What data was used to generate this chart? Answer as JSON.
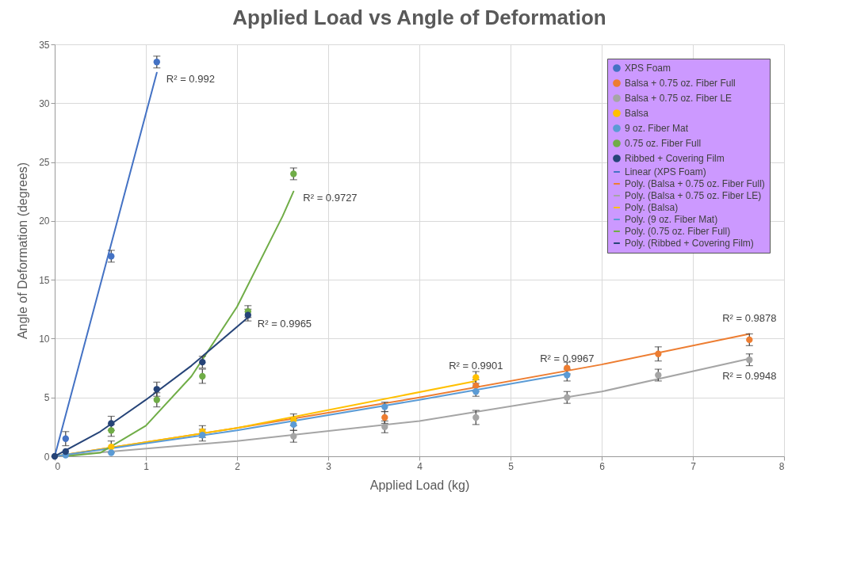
{
  "chart_data": {
    "type": "scatter",
    "title": "Applied Load vs Angle of Deformation",
    "xlabel": "Applied Load (kg)",
    "ylabel": "Angle of Deformation (degrees)",
    "xlim": [
      0,
      8
    ],
    "xticks": [
      0,
      1,
      2,
      3,
      4,
      5,
      6,
      7,
      8
    ],
    "ylim": [
      0,
      35
    ],
    "yticks": [
      0,
      5,
      10,
      15,
      20,
      25,
      30,
      35
    ],
    "grid": true,
    "legend": "top right",
    "marker": "circle",
    "series": [
      {
        "name": "XPS Foam",
        "color": "#4472c4",
        "x": [
          0.12,
          0.62,
          1.12
        ],
        "values": [
          1.5,
          17.0,
          33.5
        ],
        "errors": [
          0.6,
          0.5,
          0.5
        ]
      },
      {
        "name": "Balsa + 0.75 oz. Fiber Full",
        "color": "#ed7d31",
        "x": [
          3.62,
          4.62,
          5.62,
          6.62,
          7.62
        ],
        "values": [
          3.3,
          6.0,
          7.5,
          8.7,
          9.9
        ],
        "errors": [
          0.5,
          0.5,
          0.5,
          0.6,
          0.5
        ]
      },
      {
        "name": "Balsa + 0.75 oz. Fiber LE",
        "color": "#a5a5a5",
        "x": [
          2.62,
          3.62,
          4.62,
          5.62,
          6.62,
          7.62
        ],
        "values": [
          1.7,
          2.5,
          3.3,
          5.0,
          6.9,
          8.2
        ],
        "errors": [
          0.5,
          0.5,
          0.6,
          0.5,
          0.5,
          0.5
        ]
      },
      {
        "name": "Balsa",
        "color": "#ffc000",
        "x": [
          0.62,
          1.62,
          2.62,
          4.62
        ],
        "values": [
          0.8,
          2.1,
          3.1,
          6.7
        ],
        "errors": [
          0.5,
          0.5,
          0.5,
          0.5
        ]
      },
      {
        "name": "9 oz. Fiber Mat",
        "color": "#5b9bd5",
        "x": [
          0.12,
          0.62,
          1.62,
          2.62,
          3.62,
          4.62,
          5.62
        ],
        "values": [
          0.1,
          0.3,
          1.8,
          2.7,
          4.2,
          5.5,
          6.9
        ],
        "errors": [
          null,
          null,
          0.5,
          0.5,
          0.4,
          0.4,
          0.5
        ]
      },
      {
        "name": "0.75 oz. Fiber Full",
        "color": "#70ad47",
        "x": [
          0.62,
          1.12,
          1.62,
          2.12,
          2.62
        ],
        "values": [
          2.2,
          4.8,
          6.8,
          12.3,
          24.0
        ],
        "errors": [
          0.5,
          0.6,
          0.6,
          0.5,
          0.5
        ]
      },
      {
        "name": "Ribbed + Covering Film",
        "color": "#264478",
        "x": [
          0,
          0.12,
          0.62,
          1.12,
          1.62,
          2.12
        ],
        "values": [
          0,
          0.4,
          2.8,
          5.7,
          8.0,
          12.0
        ],
        "errors": [
          null,
          null,
          0.6,
          0.6,
          0.5,
          0.5
        ]
      },
      {
        "name": "Linear (XPS Foam)",
        "type": "line",
        "marker": "none",
        "color": "#4472c4",
        "x": [
          0,
          1.12
        ],
        "values": [
          0,
          32.6
        ]
      },
      {
        "name": "Poly. (Balsa + 0.75 oz. Fiber Full)",
        "type": "line",
        "marker": "none",
        "color": "#ed7d31",
        "x": [
          0,
          2,
          4,
          6,
          7.62
        ],
        "values": [
          0,
          2.4,
          5.0,
          7.8,
          10.4
        ]
      },
      {
        "name": "Poly. (Balsa + 0.75 oz. Fiber LE)",
        "type": "line",
        "marker": "none",
        "color": "#a5a5a5",
        "x": [
          0,
          2,
          4,
          6,
          7.62
        ],
        "values": [
          0,
          1.3,
          3.0,
          5.5,
          8.3
        ]
      },
      {
        "name": "Poly. (Balsa)",
        "type": "line",
        "marker": "none",
        "color": "#ffc000",
        "x": [
          0,
          2,
          4.62
        ],
        "values": [
          0,
          2.4,
          6.4
        ]
      },
      {
        "name": "Poly. (9 oz. Fiber Mat)",
        "type": "line",
        "marker": "none",
        "color": "#5b9bd5",
        "x": [
          0,
          2,
          4,
          5.62
        ],
        "values": [
          0,
          2.2,
          4.8,
          7.0
        ]
      },
      {
        "name": "Poly. (0.75 oz. Fiber Full)",
        "type": "line",
        "marker": "none",
        "color": "#70ad47",
        "x": [
          0.12,
          0.5,
          1,
          1.5,
          2,
          2.5,
          2.62
        ],
        "values": [
          0,
          0.3,
          2.6,
          6.8,
          12.7,
          20.4,
          22.5
        ]
      },
      {
        "name": "Poly. (Ribbed + Covering Film)",
        "type": "line",
        "marker": "none",
        "color": "#264478",
        "x": [
          0,
          0.5,
          1,
          1.5,
          2.12
        ],
        "values": [
          0,
          2.1,
          4.8,
          7.7,
          11.8
        ]
      }
    ],
    "annotations": [
      {
        "text": "R² = 0.992",
        "x": 1.12,
        "y": 32.6
      },
      {
        "text": "R² = 0.9727",
        "x": 2.62,
        "y": 22.5
      },
      {
        "text": "R² = 0.9965",
        "x": 2.12,
        "y": 11.8
      },
      {
        "text": "R² = 0.9901",
        "x": 4.62,
        "y": 6.4
      },
      {
        "text": "R² = 0.9967",
        "x": 5.62,
        "y": 7.0
      },
      {
        "text": "R² = 0.9878",
        "x": 7.62,
        "y": 10.4
      },
      {
        "text": "R² = 0.9948",
        "x": 7.62,
        "y": 8.3
      }
    ]
  }
}
